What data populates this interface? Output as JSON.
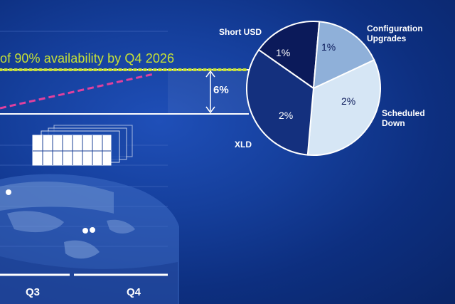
{
  "chart_data": [
    {
      "type": "line",
      "annotation": "of 90% availability by Q4 2026",
      "gap_label": "6%",
      "categories": [
        "Q3",
        "Q4"
      ],
      "colors": {
        "target": "#c6e035",
        "trend": "#e0409e",
        "band": "#ffffff"
      }
    },
    {
      "type": "pie",
      "slices": [
        {
          "name": "Short USD",
          "label": "1%",
          "value": 1,
          "color": "#0b1a5a",
          "text_color": "#ffffff"
        },
        {
          "name": "Configuration Upgrades",
          "label": "1%",
          "value": 1,
          "color": "#8fb0d9",
          "text_color": "#0b1a5a"
        },
        {
          "name": "Scheduled Down",
          "label": "2%",
          "value": 2,
          "color": "#d6e6f5",
          "text_color": "#0b1a5a"
        },
        {
          "name": "XLD",
          "label": "2%",
          "value": 2,
          "color": "#14307e",
          "text_color": "#ffffff"
        }
      ]
    }
  ]
}
